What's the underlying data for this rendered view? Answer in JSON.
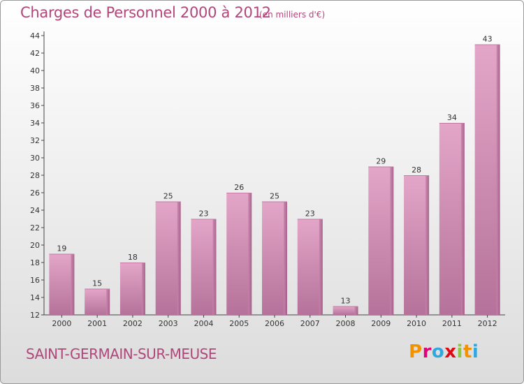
{
  "header": {
    "title": "Charges de Personnel 2000 à 2012",
    "subtitle": "(en milliers d'€)"
  },
  "footer": {
    "place": "SAINT-GERMAIN-SUR-MEUSE",
    "logo_text": "Proxiti",
    "logo_colors": [
      "#f39200",
      "#e2007a",
      "#2fa8e0",
      "#e30613",
      "#8dc63f",
      "#f39200",
      "#2fa8e0"
    ]
  },
  "colors": {
    "bar": "#d889b3",
    "text": "#b1467a"
  },
  "chart_data": {
    "type": "bar",
    "categories": [
      "2000",
      "2001",
      "2002",
      "2003",
      "2004",
      "2005",
      "2006",
      "2007",
      "2008",
      "2009",
      "2010",
      "2011",
      "2012"
    ],
    "values": [
      19,
      15,
      18,
      25,
      23,
      26,
      25,
      23,
      13,
      29,
      28,
      34,
      43
    ],
    "ylim": [
      12,
      44
    ],
    "yticks": [
      12,
      14,
      16,
      18,
      20,
      22,
      24,
      26,
      28,
      30,
      32,
      34,
      36,
      38,
      40,
      42,
      44
    ],
    "grid": false
  }
}
